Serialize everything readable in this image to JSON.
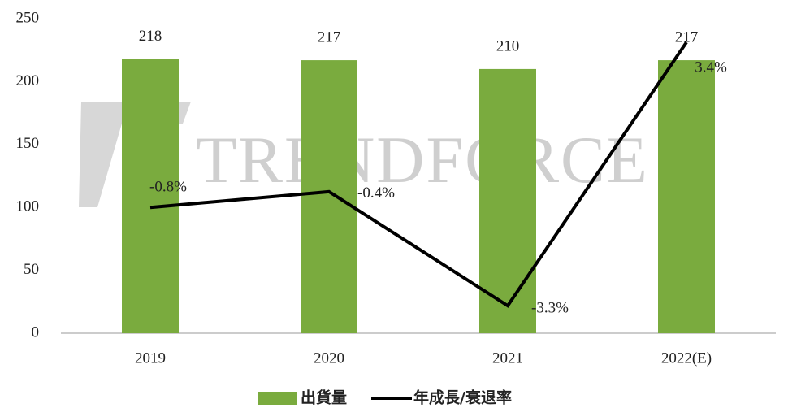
{
  "chart_data": {
    "type": "bar-line",
    "watermark": "TRENDFORCE",
    "categories": [
      "2019",
      "2020",
      "2021",
      "2022(E)"
    ],
    "series": [
      {
        "name": "出貨量",
        "type": "bar",
        "color": "#7aab3e",
        "values": [
          218,
          217,
          210,
          217
        ]
      },
      {
        "name": "年成長/衰退率",
        "type": "line",
        "axis": "y2",
        "color": "#000000",
        "values": [
          -0.8,
          -0.4,
          -3.3,
          3.4
        ],
        "value_labels": [
          "-0.8%",
          "-0.4%",
          "-3.3%",
          "3.4%"
        ]
      }
    ],
    "ylim": [
      0,
      250
    ],
    "yticks": [
      0,
      50,
      100,
      150,
      200,
      250
    ],
    "y2lim": [
      -4,
      4
    ],
    "legend": "bottom"
  }
}
